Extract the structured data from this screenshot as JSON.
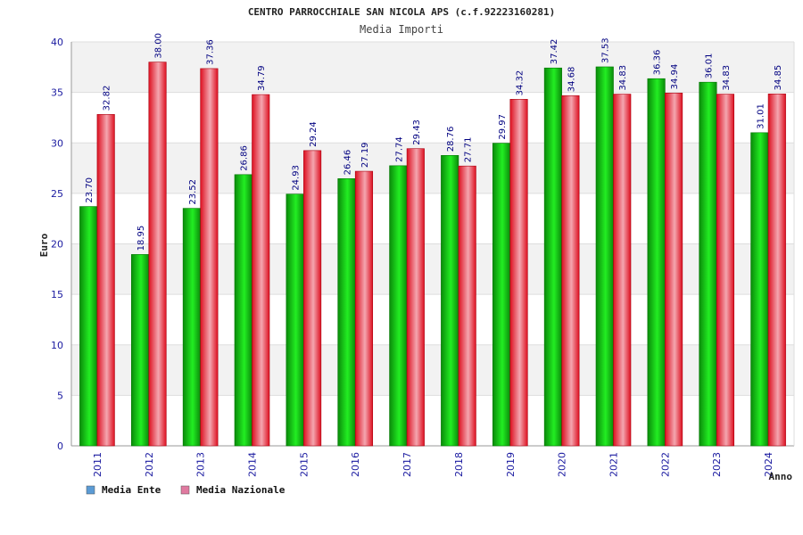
{
  "chart_data": {
    "type": "bar",
    "title": "CENTRO PARROCCHIALE SAN NICOLA APS (c.f.92223160281)",
    "subtitle": "Media Importi",
    "xlabel": "Anno",
    "ylabel": "Euro",
    "ylim": [
      0,
      40
    ],
    "ytick_step": 5,
    "grid": true,
    "legend_position": "bottom-left",
    "categories": [
      "2011",
      "2012",
      "2013",
      "2014",
      "2015",
      "2016",
      "2017",
      "2018",
      "2019",
      "2020",
      "2021",
      "2022",
      "2023",
      "2024"
    ],
    "series": [
      {
        "name": "Media Ente",
        "color": "#00bb00",
        "legend_color": "#5b9bd5",
        "values": [
          23.7,
          18.95,
          23.52,
          26.86,
          24.93,
          26.46,
          27.74,
          28.76,
          29.97,
          37.42,
          37.53,
          36.36,
          36.01,
          31.01
        ],
        "labels": [
          "23.70",
          "18.95",
          "23.52",
          "26.86",
          "24.93",
          "26.46",
          "27.74",
          "28.76",
          "29.97",
          "37.42",
          "37.53",
          "36.36",
          "36.01",
          "31.01"
        ]
      },
      {
        "name": "Media Nazionale",
        "color": "#ee1c24",
        "legend_color": "#e07aa0",
        "values": [
          32.82,
          38.0,
          37.36,
          34.79,
          29.24,
          27.19,
          29.43,
          27.71,
          34.32,
          34.68,
          34.83,
          34.94,
          34.83,
          34.85
        ],
        "labels": [
          "32.82",
          "38.00",
          "37.36",
          "34.79",
          "29.24",
          "27.19",
          "29.43",
          "27.71",
          "34.32",
          "34.68",
          "34.83",
          "34.94",
          "34.83",
          "34.85"
        ]
      }
    ]
  }
}
